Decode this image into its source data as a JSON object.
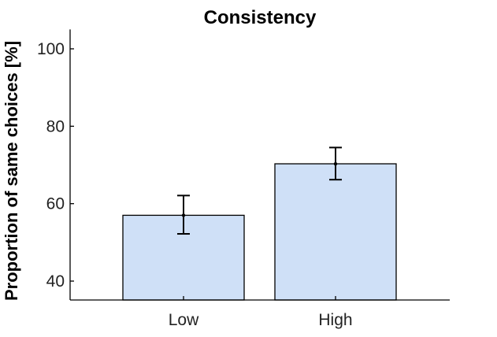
{
  "chart_data": {
    "type": "bar",
    "title": "Consistency",
    "xlabel": "",
    "ylabel": "Proportion of same choices [%]",
    "categories": [
      "Low",
      "High"
    ],
    "values": [
      57,
      70.3
    ],
    "error_low": [
      52.2,
      66.2
    ],
    "error_high": [
      62.1,
      74.5
    ],
    "ylim": [
      35,
      105
    ],
    "yticks": [
      40,
      60,
      80,
      100
    ],
    "bar_color": "#cfe0f7",
    "grid": false,
    "legend": "none"
  }
}
